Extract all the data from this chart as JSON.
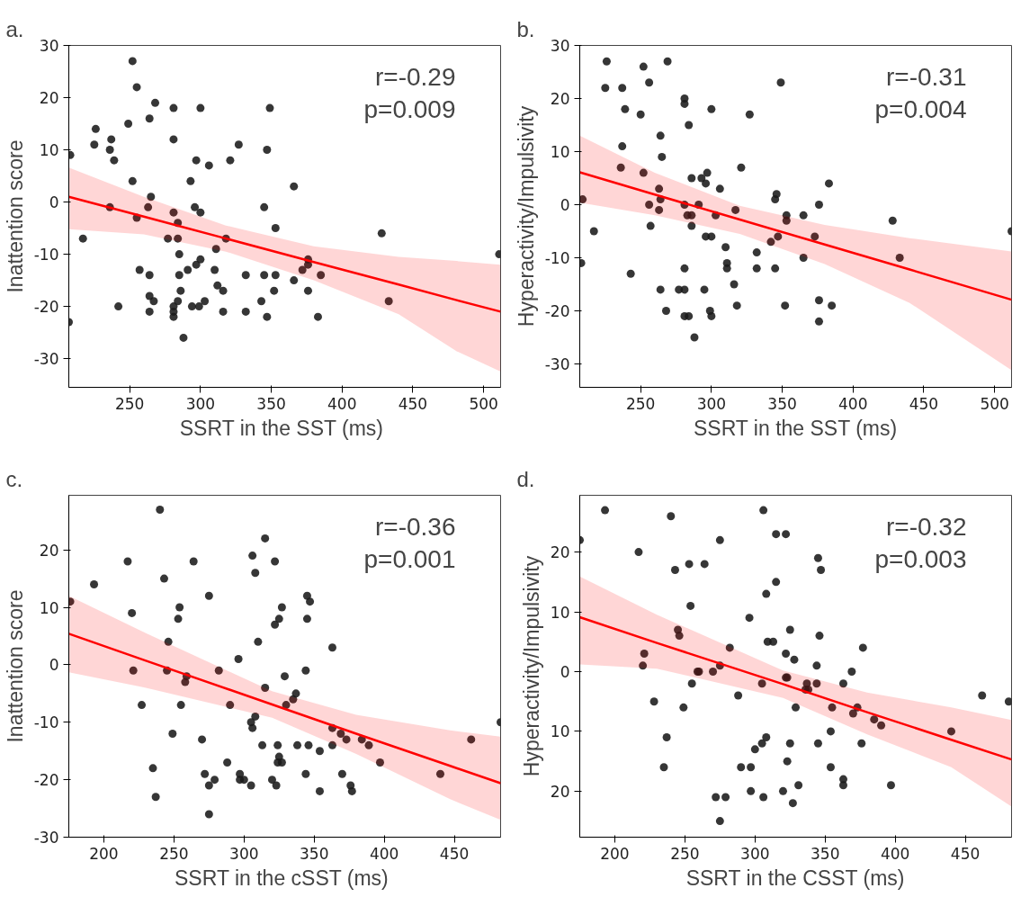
{
  "chart_data": [
    {
      "type": "scatter",
      "title": "a.",
      "xlabel": "SSRT in the SST  (ms)",
      "ylabel": "Inattention score",
      "xlim": [
        207,
        512
      ],
      "xticks": [
        250,
        300,
        350,
        400,
        450,
        500
      ],
      "ylim": [
        -35.5,
        30
      ],
      "yticks": [
        -30,
        -20,
        -10,
        0,
        10,
        20,
        30
      ],
      "grid": false,
      "marker": "circle",
      "annotations": [
        "r=-0.29",
        "p=0.009"
      ],
      "series": [
        {
          "color": "#1a1a1a",
          "x": [
            252,
            255,
            268,
            281,
            300,
            349,
            249,
            264,
            226,
            225,
            237,
            236,
            239,
            281,
            208,
            297,
            306,
            321,
            327,
            347,
            252,
            293,
            366,
            265,
            236,
            263,
            296,
            345,
            255,
            281,
            300,
            284,
            353,
            217,
            277,
            284,
            318,
            428,
            285,
            311,
            376,
            376,
            372,
            257,
            300,
            297,
            291,
            310,
            264,
            285,
            332,
            345,
            353,
            385,
            366,
            312,
            316,
            286,
            352,
            376,
            264,
            267,
            284,
            303,
            343,
            433,
            242,
            281,
            294,
            299,
            264,
            281,
            316,
            332,
            281,
            347,
            383,
            207,
            288,
            511
          ],
          "values": [
            27,
            22,
            19,
            18,
            18,
            18,
            15,
            16,
            14,
            11,
            12,
            10,
            8,
            12,
            9,
            8,
            7,
            8,
            11,
            10,
            4,
            4,
            3,
            1,
            -1,
            -1,
            -1,
            -1,
            -3,
            -2,
            -2,
            -4,
            -5,
            -7,
            -7,
            -7,
            -7,
            -6,
            -10,
            -9,
            -11,
            -12,
            -13,
            -13,
            -11,
            -12,
            -13,
            -13,
            -14,
            -14,
            -14,
            -14,
            -14,
            -14,
            -15,
            -16,
            -17,
            -17,
            -17,
            -17,
            -18,
            -19,
            -19,
            -19,
            -19,
            -19,
            -20,
            -20,
            -20,
            -20,
            -21,
            -21,
            -21,
            -21,
            -22,
            -22,
            -22,
            -23,
            -26,
            -10
          ]
        },
        {
          "type": "line",
          "marker": "none",
          "color": "#ff0000",
          "x": [
            207,
            260,
            318,
            380,
            440,
            481,
            512
          ],
          "values": [
            1.0,
            -2.8,
            -7.0,
            -11.5,
            -15.8,
            -18.8,
            -21.0
          ],
          "upper": [
            6.6,
            1.0,
            -4.5,
            -8.5,
            -10.5,
            -11.3,
            -12.0
          ],
          "lower": [
            -5.2,
            -6.2,
            -9.5,
            -15.0,
            -21.5,
            -28.6,
            -32.5
          ]
        }
      ]
    },
    {
      "type": "scatter",
      "title": "b.",
      "xlabel": "SSRT in the SST (ms)",
      "ylabel": "Hyperactivity/Impulsivity",
      "xlim": [
        207,
        512
      ],
      "xticks": [
        250,
        300,
        350,
        400,
        450,
        500
      ],
      "ylim": [
        -34.4,
        30
      ],
      "yticks": [
        -30,
        -20,
        -10,
        0,
        10,
        20,
        30
      ],
      "grid": false,
      "marker": "circle",
      "annotations": [
        "r=-0.31",
        "p=0.004"
      ],
      "series": [
        {
          "color": "#1a1a1a",
          "x": [
            226,
            269,
            252,
            256,
            349,
            225,
            237,
            239,
            250,
            281,
            281,
            300,
            284,
            327,
            264,
            237,
            265,
            236,
            252,
            321,
            286,
            293,
            297,
            296,
            306,
            383,
            263,
            346,
            345,
            209,
            264,
            256,
            281,
            291,
            376,
            263,
            317,
            283,
            286,
            303,
            353,
            365,
            353,
            257,
            286,
            217,
            428,
            512,
            296,
            300,
            347,
            373,
            342,
            310,
            332,
            365,
            433,
            208,
            311,
            281,
            311,
            332,
            345,
            243,
            316,
            264,
            277,
            281,
            295,
            376,
            318,
            352,
            385,
            268,
            299,
            281,
            284,
            300,
            376,
            288
          ],
          "values": [
            27,
            27,
            26,
            23,
            23,
            22,
            22,
            18,
            17,
            20,
            19,
            18,
            15,
            17,
            13,
            11,
            9,
            7,
            6,
            7,
            5,
            5,
            6,
            4,
            3,
            4,
            3,
            2,
            1,
            1,
            1,
            0,
            0,
            0,
            0,
            -1,
            -1,
            -2,
            -2,
            -2,
            -2,
            -2,
            -3,
            -4,
            -4,
            -5,
            -3,
            -5,
            -6,
            -6,
            -6,
            -6,
            -7,
            -8,
            -9,
            -10,
            -10,
            -11,
            -11,
            -12,
            -12,
            -12,
            -12,
            -13,
            -15,
            -16,
            -16,
            -16,
            -16,
            -18,
            -19,
            -19,
            -19,
            -20,
            -20,
            -21,
            -21,
            -21,
            -22,
            -25
          ]
        },
        {
          "type": "line",
          "marker": "none",
          "color": "#ff0000",
          "x": [
            207,
            260,
            320,
            380,
            440,
            512
          ],
          "values": [
            6.1,
            1.9,
            -2.8,
            -7.5,
            -12.2,
            -17.9
          ],
          "upper": [
            13.0,
            6.0,
            -0.2,
            -3.8,
            -6.3,
            -8.8
          ],
          "lower": [
            0.4,
            -2.0,
            -5.5,
            -11.2,
            -18.5,
            -31.2
          ]
        }
      ]
    },
    {
      "type": "scatter",
      "title": "c.",
      "xlabel": "SSRT in the cSST  (ms)",
      "ylabel": "Inattention score",
      "xlim": [
        175,
        483
      ],
      "xticks": [
        200,
        250,
        300,
        350,
        400,
        450
      ],
      "ylim": [
        -30,
        29.5
      ],
      "yticks": [
        -30,
        -20,
        -10,
        0,
        10,
        20
      ],
      "grid": false,
      "marker": "circle",
      "annotations": [
        "r=-0.36",
        "p=0.001"
      ],
      "series": [
        {
          "color": "#1a1a1a",
          "x": [
            240,
            315,
            306,
            322,
            217,
            264,
            308,
            243,
            193,
            275,
            345,
            347,
            176,
            254,
            327,
            253,
            325,
            345,
            322,
            220,
            246,
            310,
            363,
            296,
            221,
            245,
            282,
            344,
            259,
            258,
            329,
            315,
            337,
            335,
            330,
            227,
            255,
            290,
            308,
            305,
            306,
            363,
            369,
            373,
            384,
            389,
            249,
            270,
            313,
            324,
            338,
            346,
            363,
            354,
            397,
            288,
            325,
            324,
            327,
            235,
            272,
            297,
            344,
            370,
            440,
            279,
            297,
            300,
            320,
            275,
            305,
            323,
            376,
            354,
            377,
            237,
            275,
            462,
            483
          ],
          "values": [
            27,
            22,
            19,
            18,
            18,
            18,
            16,
            15,
            14,
            12,
            12,
            11,
            11,
            10,
            10,
            8,
            8,
            8,
            7,
            9,
            4,
            4,
            3,
            1,
            -1,
            -1,
            -1,
            -1,
            -2,
            -3,
            -2,
            -4,
            -5,
            -6,
            -7,
            -7,
            -7,
            -7,
            -9,
            -10,
            -11,
            -11,
            -12,
            -13,
            -13,
            -14,
            -12,
            -13,
            -14,
            -14,
            -14,
            -14,
            -14,
            -15,
            -17,
            -17,
            -16,
            -17,
            -17,
            -18,
            -19,
            -19,
            -19,
            -19,
            -19,
            -20,
            -20,
            -20,
            -20,
            -21,
            -21,
            -21,
            -21,
            -22,
            -22,
            -23,
            -26,
            -13,
            -10
          ]
        },
        {
          "type": "line",
          "marker": "none",
          "color": "#ff0000",
          "x": [
            175,
            230,
            320,
            380,
            447,
            483
          ],
          "values": [
            5.4,
            0.7,
            -6.9,
            -12.0,
            -17.6,
            -20.6
          ],
          "upper": [
            12.0,
            5.5,
            -4.6,
            -8.7,
            -11.4,
            -12.5
          ],
          "lower": [
            -1.3,
            -4.0,
            -9.2,
            -15.5,
            -23.4,
            -27.0
          ]
        }
      ]
    },
    {
      "type": "scatter",
      "title": "d.",
      "xlabel": "SSRT in the CSST (ms)",
      "ylabel": "Hyperactivity/Impulsivity",
      "xlim": [
        175,
        483
      ],
      "xticks": [
        200,
        250,
        300,
        350,
        400,
        450
      ],
      "ylim": [
        -27.7,
        29.5
      ],
      "yticks": [
        {
          "value": -20,
          "label": "20"
        },
        {
          "value": -10,
          "label": "10"
        },
        0,
        10,
        20
      ],
      "grid": false,
      "marker": "circle",
      "annotations": [
        "r=-0.32",
        "p=0.003"
      ],
      "series": [
        {
          "color": "#1a1a1a",
          "x": [
            193,
            306,
            240,
            175,
            275,
            315,
            322,
            217,
            253,
            264,
            243,
            345,
            347,
            315,
            308,
            254,
            296,
            245,
            246,
            325,
            346,
            282,
            309,
            313,
            377,
            221,
            220,
            275,
            322,
            328,
            344,
            259,
            260,
            270,
            369,
            255,
            305,
            322,
            323,
            337,
            344,
            363,
            336,
            338,
            228,
            288,
            462,
            481,
            249,
            329,
            355,
            373,
            370,
            385,
            390,
            440,
            354,
            237,
            308,
            305,
            325,
            345,
            376,
            300,
            323,
            235,
            290,
            297,
            354,
            363,
            363,
            331,
            397,
            297,
            320,
            272,
            279,
            306,
            327,
            275
          ],
          "values": [
            27,
            27,
            26,
            22,
            22,
            23,
            23,
            20,
            18,
            18,
            17,
            19,
            17,
            15,
            13,
            11,
            9,
            7,
            6,
            7,
            6,
            4,
            5,
            5,
            4,
            3,
            1,
            1,
            3,
            2,
            1,
            0,
            0,
            0,
            0,
            -2,
            -2,
            -1,
            -1,
            -2,
            -2,
            -2,
            -3,
            -3,
            -5,
            -4,
            -4,
            -5,
            -6,
            -6,
            -6,
            -6,
            -7,
            -8,
            -9,
            -10,
            -10,
            -11,
            -11,
            -12,
            -12,
            -12,
            -12,
            -13,
            -15,
            -16,
            -16,
            -16,
            -16,
            -18,
            -19,
            -19,
            -19,
            -20,
            -20,
            -21,
            -21,
            -21,
            -22,
            -25
          ]
        },
        {
          "type": "line",
          "marker": "none",
          "color": "#ff0000",
          "x": [
            175,
            230,
            320,
            380,
            440,
            483
          ],
          "values": [
            9.1,
            4.8,
            -2.1,
            -6.8,
            -11.4,
            -14.7
          ],
          "upper": [
            15.9,
            9.5,
            0.2,
            -3.5,
            -6.0,
            -8.1
          ],
          "lower": [
            1.2,
            0.5,
            -4.4,
            -10.5,
            -16.0,
            -22.6
          ]
        }
      ]
    }
  ]
}
